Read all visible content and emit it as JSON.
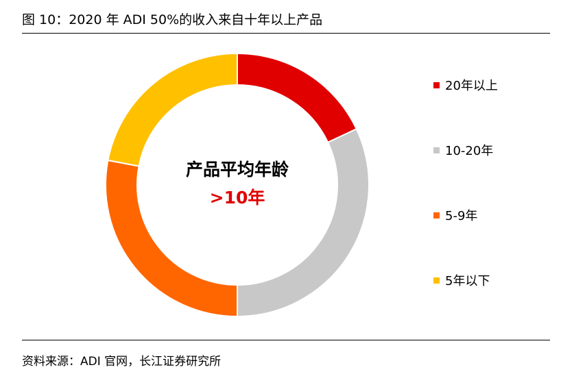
{
  "header": {
    "title": "图 10：2020 年 ADI 50%的收入来自十年以上产品"
  },
  "footer": {
    "source": "资料来源：ADI 官网，长江证券研究所"
  },
  "chart_data": {
    "type": "pie",
    "style": "donut",
    "title": "",
    "center_label": "产品平均年龄",
    "center_value": ">10年",
    "center_value_color": "#e00000",
    "legend_position": "right",
    "categories": [
      "20年以上",
      "10-20年",
      "5-9年",
      "5年以下"
    ],
    "values": [
      18,
      32,
      28,
      22
    ],
    "unit": "%",
    "colors": [
      "#e00000",
      "#c8c8c8",
      "#ff6600",
      "#ffc000"
    ],
    "start_angle_deg": 0,
    "direction": "clockwise"
  }
}
